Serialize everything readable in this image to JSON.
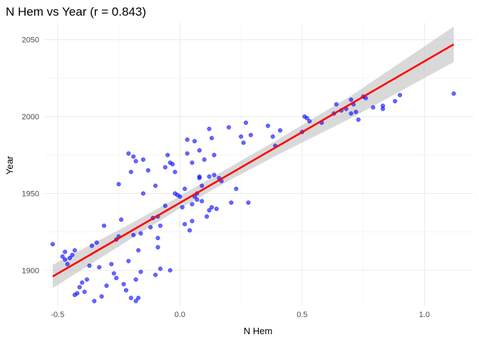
{
  "chart_data": {
    "type": "scatter",
    "title": "N Hem vs Year (r = 0.843)",
    "xlabel": "N Hem",
    "ylabel": "Year",
    "xlim": [
      -0.555,
      1.2
    ],
    "ylim": [
      1877,
      2061
    ],
    "x_ticks": [
      -0.5,
      0.0,
      0.5,
      1.0
    ],
    "x_tick_labels": [
      "-0.5",
      "0.0",
      "0.5",
      "1.0"
    ],
    "y_ticks": [
      1900,
      1950,
      2000,
      2050
    ],
    "y_tick_labels": [
      "1900",
      "1950",
      "2000",
      "2050"
    ],
    "grid": true,
    "legend": "none",
    "point_color": "#0000ff",
    "fit_color": "#ff0000",
    "band_color": "#bfbfbf",
    "regression": {
      "x_start": -0.52,
      "y_start": 1896,
      "x_end": 1.12,
      "y_end": 2047
    },
    "confidence_band": {
      "x": [
        -0.52,
        -0.2,
        0.0,
        0.2,
        0.4,
        0.7,
        1.12
      ],
      "lower": [
        1888.5,
        1920.5,
        1940.3,
        1958.3,
        1975.1,
        1999.0,
        2035.5
      ],
      "upper": [
        1903.5,
        1930.5,
        1948.3,
        1966.7,
        1985.0,
        2013.5,
        2058.5
      ]
    },
    "points": [
      {
        "x": -0.52,
        "y": 1917
      },
      {
        "x": -0.48,
        "y": 1909
      },
      {
        "x": -0.47,
        "y": 1912
      },
      {
        "x": -0.47,
        "y": 1907
      },
      {
        "x": -0.46,
        "y": 1904
      },
      {
        "x": -0.45,
        "y": 1908
      },
      {
        "x": -0.44,
        "y": 1910
      },
      {
        "x": -0.43,
        "y": 1913
      },
      {
        "x": -0.43,
        "y": 1884
      },
      {
        "x": -0.42,
        "y": 1885
      },
      {
        "x": -0.41,
        "y": 1889
      },
      {
        "x": -0.4,
        "y": 1892
      },
      {
        "x": -0.39,
        "y": 1886
      },
      {
        "x": -0.38,
        "y": 1894
      },
      {
        "x": -0.37,
        "y": 1903
      },
      {
        "x": -0.36,
        "y": 1916
      },
      {
        "x": -0.35,
        "y": 1880
      },
      {
        "x": -0.34,
        "y": 1918
      },
      {
        "x": -0.33,
        "y": 1902
      },
      {
        "x": -0.32,
        "y": 1883
      },
      {
        "x": -0.31,
        "y": 1929
      },
      {
        "x": -0.3,
        "y": 1890
      },
      {
        "x": -0.28,
        "y": 1904
      },
      {
        "x": -0.27,
        "y": 1898
      },
      {
        "x": -0.26,
        "y": 1895
      },
      {
        "x": -0.26,
        "y": 1920
      },
      {
        "x": -0.25,
        "y": 1922
      },
      {
        "x": -0.25,
        "y": 1956
      },
      {
        "x": -0.24,
        "y": 1933
      },
      {
        "x": -0.23,
        "y": 1891
      },
      {
        "x": -0.22,
        "y": 1887
      },
      {
        "x": -0.21,
        "y": 1906
      },
      {
        "x": -0.21,
        "y": 1976
      },
      {
        "x": -0.2,
        "y": 1882
      },
      {
        "x": -0.2,
        "y": 1964
      },
      {
        "x": -0.19,
        "y": 1974
      },
      {
        "x": -0.19,
        "y": 1923
      },
      {
        "x": -0.18,
        "y": 1880
      },
      {
        "x": -0.18,
        "y": 1971
      },
      {
        "x": -0.18,
        "y": 1894
      },
      {
        "x": -0.17,
        "y": 1882
      },
      {
        "x": -0.17,
        "y": 1913
      },
      {
        "x": -0.16,
        "y": 1899
      },
      {
        "x": -0.16,
        "y": 1924
      },
      {
        "x": -0.15,
        "y": 1950
      },
      {
        "x": -0.15,
        "y": 1972
      },
      {
        "x": -0.13,
        "y": 1965
      },
      {
        "x": -0.12,
        "y": 1928
      },
      {
        "x": -0.11,
        "y": 1934
      },
      {
        "x": -0.1,
        "y": 1897
      },
      {
        "x": -0.1,
        "y": 1955
      },
      {
        "x": -0.09,
        "y": 1935
      },
      {
        "x": -0.09,
        "y": 1921
      },
      {
        "x": -0.09,
        "y": 1915
      },
      {
        "x": -0.08,
        "y": 1901
      },
      {
        "x": -0.08,
        "y": 1929
      },
      {
        "x": -0.06,
        "y": 1942
      },
      {
        "x": -0.06,
        "y": 1967
      },
      {
        "x": -0.05,
        "y": 1975
      },
      {
        "x": -0.04,
        "y": 1900
      },
      {
        "x": -0.04,
        "y": 1970
      },
      {
        "x": -0.03,
        "y": 1969
      },
      {
        "x": -0.02,
        "y": 1964
      },
      {
        "x": -0.02,
        "y": 1950
      },
      {
        "x": -0.01,
        "y": 1949
      },
      {
        "x": 0.0,
        "y": 1948
      },
      {
        "x": 0.01,
        "y": 1941
      },
      {
        "x": 0.02,
        "y": 1930
      },
      {
        "x": 0.02,
        "y": 1953
      },
      {
        "x": 0.03,
        "y": 1976
      },
      {
        "x": 0.03,
        "y": 1985
      },
      {
        "x": 0.04,
        "y": 1926
      },
      {
        "x": 0.05,
        "y": 1943
      },
      {
        "x": 0.05,
        "y": 1932
      },
      {
        "x": 0.05,
        "y": 1970
      },
      {
        "x": 0.06,
        "y": 1948
      },
      {
        "x": 0.06,
        "y": 1984
      },
      {
        "x": 0.07,
        "y": 1950
      },
      {
        "x": 0.07,
        "y": 1946
      },
      {
        "x": 0.08,
        "y": 1960
      },
      {
        "x": 0.08,
        "y": 1961
      },
      {
        "x": 0.08,
        "y": 1978
      },
      {
        "x": 0.09,
        "y": 1945
      },
      {
        "x": 0.09,
        "y": 1955
      },
      {
        "x": 0.1,
        "y": 1972
      },
      {
        "x": 0.11,
        "y": 1935
      },
      {
        "x": 0.12,
        "y": 1939
      },
      {
        "x": 0.12,
        "y": 1961
      },
      {
        "x": 0.12,
        "y": 1992
      },
      {
        "x": 0.13,
        "y": 1986
      },
      {
        "x": 0.13,
        "y": 1941
      },
      {
        "x": 0.14,
        "y": 1962
      },
      {
        "x": 0.14,
        "y": 1975
      },
      {
        "x": 0.15,
        "y": 1940
      },
      {
        "x": 0.16,
        "y": 1960
      },
      {
        "x": 0.17,
        "y": 1958
      },
      {
        "x": 0.2,
        "y": 1993
      },
      {
        "x": 0.21,
        "y": 1944
      },
      {
        "x": 0.23,
        "y": 1953
      },
      {
        "x": 0.25,
        "y": 1987
      },
      {
        "x": 0.26,
        "y": 1983
      },
      {
        "x": 0.27,
        "y": 1996
      },
      {
        "x": 0.28,
        "y": 1944
      },
      {
        "x": 0.29,
        "y": 1988
      },
      {
        "x": 0.36,
        "y": 1994
      },
      {
        "x": 0.38,
        "y": 1987
      },
      {
        "x": 0.39,
        "y": 1981
      },
      {
        "x": 0.41,
        "y": 1991
      },
      {
        "x": 0.5,
        "y": 1990
      },
      {
        "x": 0.51,
        "y": 2000
      },
      {
        "x": 0.52,
        "y": 1999
      },
      {
        "x": 0.53,
        "y": 1997
      },
      {
        "x": 0.58,
        "y": 1996
      },
      {
        "x": 0.63,
        "y": 2002
      },
      {
        "x": 0.64,
        "y": 2008
      },
      {
        "x": 0.66,
        "y": 2004
      },
      {
        "x": 0.68,
        "y": 2005
      },
      {
        "x": 0.7,
        "y": 2011
      },
      {
        "x": 0.7,
        "y": 2002
      },
      {
        "x": 0.71,
        "y": 2008
      },
      {
        "x": 0.72,
        "y": 2003
      },
      {
        "x": 0.73,
        "y": 1998
      },
      {
        "x": 0.75,
        "y": 2013
      },
      {
        "x": 0.76,
        "y": 2012
      },
      {
        "x": 0.79,
        "y": 2006
      },
      {
        "x": 0.83,
        "y": 2005
      },
      {
        "x": 0.83,
        "y": 2007
      },
      {
        "x": 0.88,
        "y": 2010
      },
      {
        "x": 0.9,
        "y": 2014
      },
      {
        "x": 1.12,
        "y": 2015
      }
    ]
  }
}
